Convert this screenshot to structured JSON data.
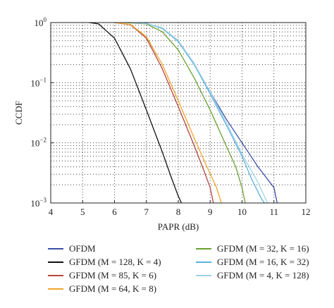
{
  "chart_data": {
    "type": "line",
    "xlabel": "PAPR (dB)",
    "ylabel": "CCDF",
    "xlim": [
      4,
      12
    ],
    "ylim": [
      0.001,
      1
    ],
    "yscale": "log",
    "xticks": [
      "4",
      "5",
      "6",
      "7",
      "8",
      "9",
      "10",
      "11",
      "12"
    ],
    "yticks": [
      {
        "base": "10",
        "exp": "0"
      },
      {
        "base": "10",
        "exp": "−1"
      },
      {
        "base": "10",
        "exp": "−2"
      },
      {
        "base": "10",
        "exp": "−3"
      }
    ],
    "grid": true,
    "legend_position": "below",
    "series": [
      {
        "name": "OFDM",
        "color": "#3a4ea6",
        "x": [
          6.5,
          7.0,
          7.5,
          8.0,
          8.5,
          9.0,
          9.5,
          10.0,
          10.5,
          11.0,
          11.1
        ],
        "y": [
          1,
          0.97,
          0.8,
          0.5,
          0.2,
          0.07,
          0.025,
          0.01,
          0.004,
          0.0018,
          0.001
        ]
      },
      {
        "name": "GFDM (M = 128, K = 4)",
        "color": "#111111",
        "x": [
          5.2,
          5.5,
          6.0,
          6.5,
          7.0,
          7.5,
          7.8,
          8.0,
          8.1
        ],
        "y": [
          1,
          0.95,
          0.55,
          0.17,
          0.035,
          0.007,
          0.0025,
          0.0013,
          0.001
        ]
      },
      {
        "name": "GFDM (M = 85, K = 6)",
        "color": "#b5463f",
        "x": [
          6.0,
          6.5,
          7.0,
          7.5,
          8.0,
          8.5,
          8.8,
          9.0,
          9.1
        ],
        "y": [
          1,
          0.92,
          0.55,
          0.17,
          0.04,
          0.009,
          0.0035,
          0.0018,
          0.001
        ]
      },
      {
        "name": "GFDM (M = 64, K = 8)",
        "color": "#f0a52b",
        "x": [
          6.0,
          6.5,
          7.0,
          7.5,
          8.0,
          8.5,
          8.9,
          9.2,
          9.35
        ],
        "y": [
          1,
          0.93,
          0.58,
          0.2,
          0.05,
          0.012,
          0.004,
          0.0018,
          0.001
        ]
      },
      {
        "name": "GFDM (M = 32, K = 16)",
        "color": "#6aa032",
        "x": [
          6.3,
          7.0,
          7.5,
          8.0,
          8.5,
          9.0,
          9.5,
          9.8,
          10.0,
          10.1
        ],
        "y": [
          1,
          0.95,
          0.7,
          0.35,
          0.12,
          0.035,
          0.009,
          0.004,
          0.0018,
          0.001
        ]
      },
      {
        "name": "GFDM (M = 16, K = 32)",
        "color": "#5db2dc",
        "x": [
          6.5,
          7.0,
          7.5,
          8.0,
          8.5,
          9.0,
          9.5,
          10.0,
          10.3,
          10.6,
          10.7
        ],
        "y": [
          1,
          0.96,
          0.8,
          0.48,
          0.2,
          0.065,
          0.02,
          0.006,
          0.0025,
          0.0012,
          0.001
        ]
      },
      {
        "name": "GFDM (M = 4, K = 128)",
        "color": "#9fd3ea",
        "x": [
          6.5,
          7.0,
          7.5,
          8.0,
          8.5,
          9.0,
          9.5,
          10.0,
          10.5,
          10.8
        ],
        "y": [
          1,
          0.96,
          0.82,
          0.5,
          0.21,
          0.07,
          0.022,
          0.0065,
          0.0022,
          0.001
        ]
      }
    ]
  }
}
